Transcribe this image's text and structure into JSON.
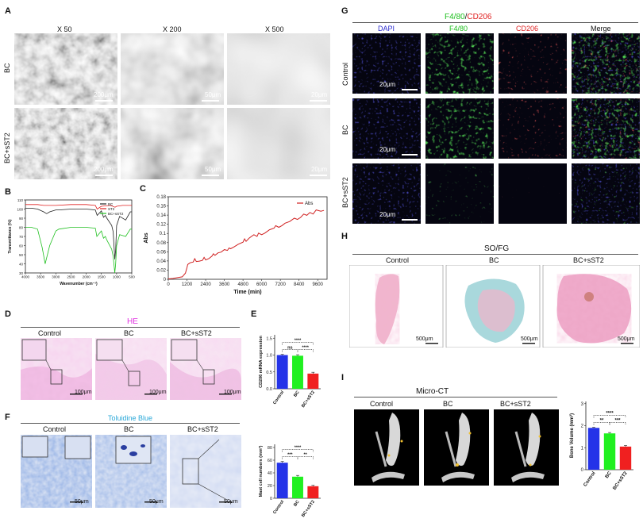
{
  "panels": {
    "A": "A",
    "B": "B",
    "C": "C",
    "D": "D",
    "E": "E",
    "F": "F",
    "G": "G",
    "H": "H",
    "I": "I"
  },
  "panelA": {
    "cols": [
      "X 50",
      "X 200",
      "X 500"
    ],
    "rows": [
      "BC",
      "BC+sST2"
    ],
    "scalebars": [
      "200μm",
      "50μm",
      "20μm"
    ]
  },
  "chart_b": {
    "type": "line",
    "ylabel": "Transmittance (%)",
    "xlabel": "Wavenumber (cm⁻¹)",
    "yticks": [
      "110",
      "100",
      "90",
      "80",
      "70",
      "60",
      "50",
      "40",
      "30"
    ],
    "xticks": [
      "4000",
      "3500",
      "3000",
      "2500",
      "2000",
      "1500",
      "1000",
      "500"
    ],
    "series": [
      {
        "name": "BC",
        "color": "#222222",
        "x": [
          4000,
          3800,
          3600,
          3400,
          3300,
          3200,
          3000,
          2900,
          2500,
          2000,
          1700,
          1640,
          1500,
          1430,
          1370,
          1320,
          1160,
          1110,
          1060,
          1030,
          1000,
          900,
          700,
          550,
          500
        ],
        "y": [
          101,
          101,
          100,
          97,
          95,
          97,
          99,
          99,
          100,
          100,
          99,
          93,
          98,
          91,
          93,
          90,
          82,
          75,
          45,
          55,
          82,
          92,
          88,
          97,
          97
        ]
      },
      {
        "name": "ST2",
        "color": "#e02020",
        "x": [
          4000,
          3600,
          3400,
          3000,
          2500,
          2000,
          1700,
          1640,
          1500,
          1200,
          1050,
          1000,
          800,
          600,
          500
        ],
        "y": [
          105,
          105,
          104,
          104,
          105,
          105,
          104,
          100,
          103,
          104,
          102,
          103,
          104,
          104,
          104
        ]
      },
      {
        "name": "BC+sST2",
        "color": "#20c020",
        "x": [
          4000,
          3800,
          3600,
          3450,
          3350,
          3200,
          3000,
          2900,
          2500,
          2000,
          1700,
          1650,
          1500,
          1430,
          1370,
          1320,
          1160,
          1110,
          1060,
          1030,
          1000,
          900,
          700,
          550,
          500
        ],
        "y": [
          80,
          80,
          78,
          58,
          40,
          60,
          76,
          78,
          80,
          80,
          79,
          70,
          76,
          68,
          70,
          66,
          56,
          48,
          30,
          40,
          60,
          72,
          70,
          78,
          78
        ]
      }
    ],
    "xlim": [
      4000,
      500
    ],
    "ylim": [
      30,
      110
    ]
  },
  "chart_c": {
    "type": "line",
    "ylabel": "Abs",
    "xlabel": "Time (min)",
    "yticks": [
      "0.18",
      "0.16",
      "0.14",
      "0.12",
      "0.1",
      "0.08",
      "0.06",
      "0.04",
      "0.02",
      "0"
    ],
    "xticks": [
      "0",
      "1200",
      "2400",
      "3600",
      "4800",
      "6000",
      "7200",
      "8400",
      "9600"
    ],
    "series": [
      {
        "name": "Abs",
        "color": "#d02020",
        "x": [
          0,
          300,
          600,
          900,
          1100,
          1200,
          1250,
          1400,
          1600,
          1700,
          1800,
          2000,
          2200,
          2300,
          2400,
          2600,
          2800,
          2900,
          3000,
          3200,
          3400,
          3600,
          3800,
          3900,
          4000,
          4200,
          4500,
          4800,
          4900,
          5000,
          5200,
          5500,
          5700,
          5800,
          6000,
          6200,
          6500,
          6800,
          6900,
          7100,
          7300,
          7500,
          7800,
          8100,
          8300,
          8500,
          8700,
          8900,
          9100,
          9300,
          9500,
          9800,
          10000
        ],
        "y": [
          0.001,
          0.002,
          0.004,
          0.006,
          0.015,
          0.028,
          0.036,
          0.04,
          0.042,
          0.05,
          0.043,
          0.044,
          0.046,
          0.053,
          0.047,
          0.05,
          0.056,
          0.062,
          0.058,
          0.064,
          0.066,
          0.072,
          0.07,
          0.076,
          0.074,
          0.078,
          0.085,
          0.09,
          0.098,
          0.092,
          0.1,
          0.108,
          0.104,
          0.112,
          0.108,
          0.112,
          0.12,
          0.124,
          0.13,
          0.126,
          0.13,
          0.136,
          0.14,
          0.148,
          0.145,
          0.15,
          0.158,
          0.155,
          0.162,
          0.158,
          0.168,
          0.165,
          0.167
        ]
      }
    ],
    "xlim": [
      0,
      10200
    ],
    "ylim": [
      0,
      0.2
    ]
  },
  "panelD": {
    "title": "HE",
    "cols": [
      "Control",
      "BC",
      "BC+sST2"
    ],
    "scalebar": "100μm"
  },
  "chart_e": {
    "type": "bar",
    "ylabel": "CD206 mRNA expression",
    "categories": [
      "Control",
      "BC",
      "BC+sST2"
    ],
    "values": [
      1.0,
      0.98,
      0.45
    ],
    "errors": [
      0.02,
      0.03,
      0.04
    ],
    "colors": [
      "#2433e8",
      "#20f020",
      "#f02020"
    ],
    "yticks": [
      "0.0",
      "0.5",
      "1.0",
      "1.5"
    ],
    "ylim": [
      0,
      1.6
    ],
    "sig": [
      "ns",
      "****",
      "****"
    ]
  },
  "panelF": {
    "title": "Toluidine Blue",
    "cols": [
      "Control",
      "BC",
      "BC+sST2"
    ],
    "scalebar": "50μm"
  },
  "chart_f": {
    "type": "bar",
    "ylabel": "Mast cell numbers (mm²)",
    "categories": [
      "Control",
      "BC",
      "BC+sST2"
    ],
    "values": [
      56,
      34,
      19
    ],
    "errors": [
      2,
      2,
      1.5
    ],
    "colors": [
      "#2433e8",
      "#20f020",
      "#f02020"
    ],
    "yticks": [
      "0",
      "20",
      "40",
      "60",
      "80"
    ],
    "ylim": [
      0,
      85
    ],
    "sig": [
      "***",
      "**",
      "****"
    ]
  },
  "panelG": {
    "title_a": "F4/80",
    "title_sep": "/",
    "title_b": "CD206",
    "cols": [
      "DAPI",
      "F4/80",
      "CD206",
      "Merge"
    ],
    "rows": [
      "Control",
      "BC",
      "BC+sST2"
    ],
    "scalebar": "20μm",
    "colors": {
      "dapi": "#2b2bd0",
      "f480": "#20d020",
      "cd206": "#e02020",
      "title_green": "#20c020",
      "title_red": "#e02020"
    }
  },
  "panelH": {
    "title": "SO/FG",
    "title_color": "#20b8e0",
    "cols": [
      "Control",
      "BC",
      "BC+sST2"
    ],
    "scalebar": "500μm"
  },
  "panelI": {
    "title": "Micro-CT",
    "cols": [
      "Control",
      "BC",
      "BC+sST2"
    ]
  },
  "chart_i": {
    "type": "bar",
    "ylabel": "Bone Volume (mm³)",
    "categories": [
      "Control",
      "BC",
      "BC+sST2"
    ],
    "values": [
      1.9,
      1.65,
      1.05
    ],
    "errors": [
      0.03,
      0.04,
      0.05
    ],
    "colors": [
      "#2433e8",
      "#20f020",
      "#f02020"
    ],
    "yticks": [
      "0",
      "1",
      "2",
      "3"
    ],
    "ylim": [
      0,
      3.1
    ],
    "sig": [
      "**",
      "***",
      "****"
    ]
  }
}
